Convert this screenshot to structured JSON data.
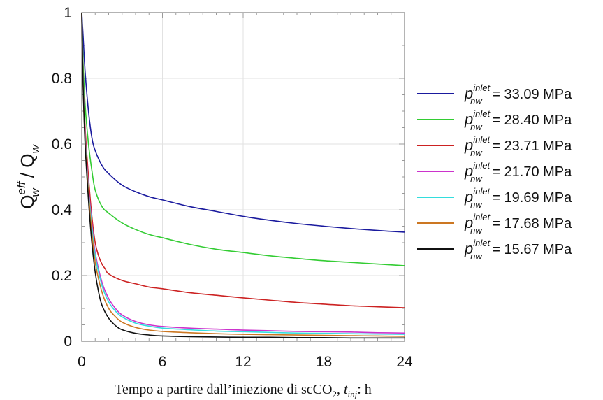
{
  "chart_data": {
    "type": "line",
    "title": "",
    "xlabel": {
      "prefix": "Tempo a partire dall’iniezione di scCO",
      "sub": "2",
      "mid": ", ",
      "var": "t",
      "var_sub": "inj",
      "suffix": ": h"
    },
    "ylabel": {
      "main": "Q",
      "sup": "eff",
      "sub": "w",
      "sep": " / ",
      "denom": "Q",
      "denom_sub": "w"
    },
    "xlim": [
      0,
      24
    ],
    "ylim": [
      0,
      1
    ],
    "x_ticks": [
      "0",
      "6",
      "12",
      "18",
      "24"
    ],
    "y_ticks": [
      "0",
      "0.2",
      "0.4",
      "0.6",
      "0.8",
      "1"
    ],
    "legend_position": "right",
    "legend_symbol": {
      "main": "p",
      "sup": "inlet",
      "sub": "nw"
    },
    "series": [
      {
        "name": "= 33.09 MPa",
        "color": "#1a1a9e",
        "points": [
          [
            0,
            1
          ],
          [
            0.1,
            0.93
          ],
          [
            0.25,
            0.82
          ],
          [
            0.5,
            0.7
          ],
          [
            0.75,
            0.62
          ],
          [
            1,
            0.58
          ],
          [
            1.5,
            0.535
          ],
          [
            2,
            0.51
          ],
          [
            3,
            0.475
          ],
          [
            4,
            0.455
          ],
          [
            5,
            0.44
          ],
          [
            6,
            0.43
          ],
          [
            8,
            0.41
          ],
          [
            10,
            0.395
          ],
          [
            12,
            0.38
          ],
          [
            14,
            0.368
          ],
          [
            16,
            0.358
          ],
          [
            18,
            0.35
          ],
          [
            20,
            0.343
          ],
          [
            22,
            0.337
          ],
          [
            24,
            0.332
          ]
        ]
      },
      {
        "name": "= 28.40 MPa",
        "color": "#33cc33",
        "points": [
          [
            0,
            1
          ],
          [
            0.1,
            0.85
          ],
          [
            0.25,
            0.72
          ],
          [
            0.5,
            0.6
          ],
          [
            0.75,
            0.52
          ],
          [
            1,
            0.46
          ],
          [
            1.5,
            0.41
          ],
          [
            2,
            0.39
          ],
          [
            3,
            0.36
          ],
          [
            4,
            0.34
          ],
          [
            5,
            0.325
          ],
          [
            6,
            0.315
          ],
          [
            8,
            0.295
          ],
          [
            10,
            0.28
          ],
          [
            12,
            0.27
          ],
          [
            14,
            0.26
          ],
          [
            16,
            0.252
          ],
          [
            18,
            0.245
          ],
          [
            20,
            0.24
          ],
          [
            22,
            0.235
          ],
          [
            24,
            0.23
          ]
        ]
      },
      {
        "name": "= 23.71 MPa",
        "color": "#cc2222",
        "points": [
          [
            0,
            1
          ],
          [
            0.1,
            0.8
          ],
          [
            0.25,
            0.65
          ],
          [
            0.5,
            0.5
          ],
          [
            0.75,
            0.38
          ],
          [
            1,
            0.3
          ],
          [
            1.25,
            0.26
          ],
          [
            1.5,
            0.235
          ],
          [
            1.75,
            0.22
          ],
          [
            2,
            0.205
          ],
          [
            3,
            0.185
          ],
          [
            4,
            0.175
          ],
          [
            5,
            0.165
          ],
          [
            6,
            0.16
          ],
          [
            8,
            0.148
          ],
          [
            10,
            0.14
          ],
          [
            12,
            0.132
          ],
          [
            14,
            0.125
          ],
          [
            16,
            0.118
          ],
          [
            18,
            0.113
          ],
          [
            20,
            0.108
          ],
          [
            22,
            0.105
          ],
          [
            24,
            0.102
          ]
        ]
      },
      {
        "name": "= 21.70 MPa",
        "color": "#cc33cc",
        "points": [
          [
            0,
            1
          ],
          [
            0.1,
            0.8
          ],
          [
            0.25,
            0.63
          ],
          [
            0.5,
            0.47
          ],
          [
            0.75,
            0.36
          ],
          [
            1,
            0.27
          ],
          [
            1.5,
            0.18
          ],
          [
            2,
            0.13
          ],
          [
            2.5,
            0.1
          ],
          [
            3,
            0.08
          ],
          [
            4,
            0.06
          ],
          [
            5,
            0.05
          ],
          [
            6,
            0.045
          ],
          [
            8,
            0.04
          ],
          [
            10,
            0.037
          ],
          [
            12,
            0.034
          ],
          [
            14,
            0.032
          ],
          [
            16,
            0.03
          ],
          [
            18,
            0.029
          ],
          [
            20,
            0.028
          ],
          [
            22,
            0.026
          ],
          [
            24,
            0.025
          ]
        ]
      },
      {
        "name": "= 19.69 MPa",
        "color": "#33dddd",
        "points": [
          [
            0,
            1
          ],
          [
            0.1,
            0.8
          ],
          [
            0.25,
            0.62
          ],
          [
            0.5,
            0.46
          ],
          [
            0.75,
            0.35
          ],
          [
            1,
            0.26
          ],
          [
            1.5,
            0.17
          ],
          [
            2,
            0.12
          ],
          [
            2.5,
            0.092
          ],
          [
            3,
            0.074
          ],
          [
            4,
            0.055
          ],
          [
            5,
            0.046
          ],
          [
            6,
            0.04
          ],
          [
            8,
            0.035
          ],
          [
            10,
            0.031
          ],
          [
            12,
            0.029
          ],
          [
            14,
            0.027
          ],
          [
            16,
            0.025
          ],
          [
            18,
            0.024
          ],
          [
            20,
            0.023
          ],
          [
            22,
            0.022
          ],
          [
            24,
            0.021
          ]
        ]
      },
      {
        "name": "= 17.68 MPa",
        "color": "#cc7722",
        "points": [
          [
            0,
            1
          ],
          [
            0.1,
            0.79
          ],
          [
            0.25,
            0.61
          ],
          [
            0.5,
            0.45
          ],
          [
            0.75,
            0.33
          ],
          [
            1,
            0.24
          ],
          [
            1.5,
            0.15
          ],
          [
            2,
            0.1
          ],
          [
            2.5,
            0.075
          ],
          [
            3,
            0.058
          ],
          [
            4,
            0.042
          ],
          [
            5,
            0.034
          ],
          [
            6,
            0.03
          ],
          [
            8,
            0.026
          ],
          [
            10,
            0.023
          ],
          [
            12,
            0.021
          ],
          [
            14,
            0.02
          ],
          [
            16,
            0.019
          ],
          [
            18,
            0.018
          ],
          [
            20,
            0.017
          ],
          [
            22,
            0.016
          ],
          [
            24,
            0.015
          ]
        ]
      },
      {
        "name": "= 15.67 MPa",
        "color": "#111111",
        "points": [
          [
            0,
            1
          ],
          [
            0.1,
            0.78
          ],
          [
            0.25,
            0.6
          ],
          [
            0.5,
            0.43
          ],
          [
            0.75,
            0.3
          ],
          [
            1,
            0.21
          ],
          [
            1.25,
            0.15
          ],
          [
            1.5,
            0.11
          ],
          [
            2,
            0.07
          ],
          [
            2.5,
            0.048
          ],
          [
            3,
            0.035
          ],
          [
            4,
            0.024
          ],
          [
            5,
            0.019
          ],
          [
            6,
            0.016
          ],
          [
            8,
            0.014
          ],
          [
            10,
            0.013
          ],
          [
            12,
            0.012
          ],
          [
            14,
            0.012
          ],
          [
            16,
            0.011
          ],
          [
            18,
            0.011
          ],
          [
            20,
            0.01
          ],
          [
            22,
            0.01
          ],
          [
            24,
            0.01
          ]
        ]
      }
    ]
  }
}
